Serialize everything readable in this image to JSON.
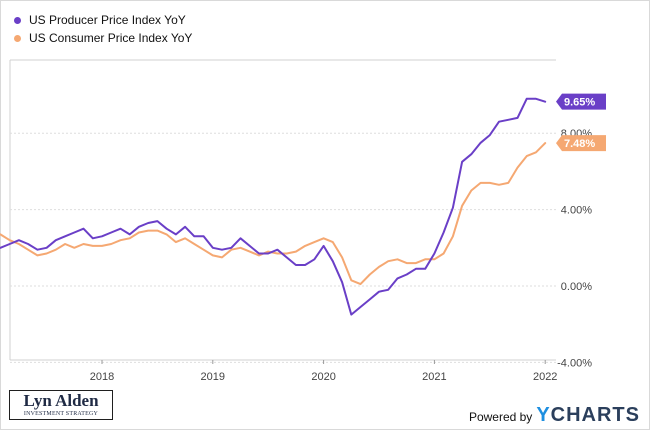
{
  "chart_data": {
    "type": "line",
    "title": "",
    "xlabel": "",
    "ylabel": "",
    "x_ticks": [
      "2018",
      "2019",
      "2020",
      "2021",
      "2022"
    ],
    "y_ticks": [
      "-4.00%",
      "0.00%",
      "4.00%",
      "8.00%"
    ],
    "ylim": [
      -4,
      11.5
    ],
    "grid": "horizontal",
    "legend_position": "top-left",
    "series": [
      {
        "name": "US Producer Price Index YoY",
        "color": "#6a3fc7",
        "last_label": "9.65%",
        "points": [
          [
            "2017-02",
            2.0
          ],
          [
            "2017-03",
            2.2
          ],
          [
            "2017-04",
            2.4
          ],
          [
            "2017-05",
            2.2
          ],
          [
            "2017-06",
            1.9
          ],
          [
            "2017-07",
            2.0
          ],
          [
            "2017-08",
            2.4
          ],
          [
            "2017-09",
            2.6
          ],
          [
            "2017-10",
            2.8
          ],
          [
            "2017-11",
            3.0
          ],
          [
            "2017-12",
            2.5
          ],
          [
            "2018-01",
            2.6
          ],
          [
            "2018-02",
            2.8
          ],
          [
            "2018-03",
            3.0
          ],
          [
            "2018-04",
            2.7
          ],
          [
            "2018-05",
            3.1
          ],
          [
            "2018-06",
            3.3
          ],
          [
            "2018-07",
            3.4
          ],
          [
            "2018-08",
            3.0
          ],
          [
            "2018-09",
            2.7
          ],
          [
            "2018-10",
            3.1
          ],
          [
            "2018-11",
            2.6
          ],
          [
            "2018-12",
            2.6
          ],
          [
            "2019-01",
            2.0
          ],
          [
            "2019-02",
            1.9
          ],
          [
            "2019-03",
            2.0
          ],
          [
            "2019-04",
            2.5
          ],
          [
            "2019-05",
            2.1
          ],
          [
            "2019-06",
            1.7
          ],
          [
            "2019-07",
            1.7
          ],
          [
            "2019-08",
            1.9
          ],
          [
            "2019-09",
            1.5
          ],
          [
            "2019-10",
            1.1
          ],
          [
            "2019-11",
            1.1
          ],
          [
            "2019-12",
            1.4
          ],
          [
            "2020-01",
            2.1
          ],
          [
            "2020-02",
            1.3
          ],
          [
            "2020-03",
            0.2
          ],
          [
            "2020-04",
            -1.5
          ],
          [
            "2020-05",
            -1.1
          ],
          [
            "2020-06",
            -0.7
          ],
          [
            "2020-07",
            -0.3
          ],
          [
            "2020-08",
            -0.2
          ],
          [
            "2020-09",
            0.4
          ],
          [
            "2020-10",
            0.6
          ],
          [
            "2020-11",
            0.9
          ],
          [
            "2020-12",
            0.9
          ],
          [
            "2021-01",
            1.7
          ],
          [
            "2021-02",
            2.8
          ],
          [
            "2021-03",
            4.1
          ],
          [
            "2021-04",
            6.5
          ],
          [
            "2021-05",
            6.9
          ],
          [
            "2021-06",
            7.5
          ],
          [
            "2021-07",
            7.9
          ],
          [
            "2021-08",
            8.6
          ],
          [
            "2021-09",
            8.7
          ],
          [
            "2021-10",
            8.8
          ],
          [
            "2021-11",
            9.8
          ],
          [
            "2021-12",
            9.8
          ],
          [
            "2022-01",
            9.65
          ]
        ]
      },
      {
        "name": "US Consumer Price Index YoY",
        "color": "#f5a872",
        "last_label": "7.48%",
        "points": [
          [
            "2017-02",
            2.7
          ],
          [
            "2017-03",
            2.4
          ],
          [
            "2017-04",
            2.2
          ],
          [
            "2017-05",
            1.9
          ],
          [
            "2017-06",
            1.6
          ],
          [
            "2017-07",
            1.7
          ],
          [
            "2017-08",
            1.9
          ],
          [
            "2017-09",
            2.2
          ],
          [
            "2017-10",
            2.0
          ],
          [
            "2017-11",
            2.2
          ],
          [
            "2017-12",
            2.1
          ],
          [
            "2018-01",
            2.1
          ],
          [
            "2018-02",
            2.2
          ],
          [
            "2018-03",
            2.4
          ],
          [
            "2018-04",
            2.5
          ],
          [
            "2018-05",
            2.8
          ],
          [
            "2018-06",
            2.9
          ],
          [
            "2018-07",
            2.9
          ],
          [
            "2018-08",
            2.7
          ],
          [
            "2018-09",
            2.3
          ],
          [
            "2018-10",
            2.5
          ],
          [
            "2018-11",
            2.2
          ],
          [
            "2018-12",
            1.9
          ],
          [
            "2019-01",
            1.6
          ],
          [
            "2019-02",
            1.5
          ],
          [
            "2019-03",
            1.9
          ],
          [
            "2019-04",
            2.0
          ],
          [
            "2019-05",
            1.8
          ],
          [
            "2019-06",
            1.6
          ],
          [
            "2019-07",
            1.8
          ],
          [
            "2019-08",
            1.7
          ],
          [
            "2019-09",
            1.7
          ],
          [
            "2019-10",
            1.8
          ],
          [
            "2019-11",
            2.1
          ],
          [
            "2019-12",
            2.3
          ],
          [
            "2020-01",
            2.5
          ],
          [
            "2020-02",
            2.3
          ],
          [
            "2020-03",
            1.5
          ],
          [
            "2020-04",
            0.3
          ],
          [
            "2020-05",
            0.1
          ],
          [
            "2020-06",
            0.6
          ],
          [
            "2020-07",
            1.0
          ],
          [
            "2020-08",
            1.3
          ],
          [
            "2020-09",
            1.4
          ],
          [
            "2020-10",
            1.2
          ],
          [
            "2020-11",
            1.2
          ],
          [
            "2020-12",
            1.4
          ],
          [
            "2021-01",
            1.4
          ],
          [
            "2021-02",
            1.7
          ],
          [
            "2021-03",
            2.6
          ],
          [
            "2021-04",
            4.2
          ],
          [
            "2021-05",
            5.0
          ],
          [
            "2021-06",
            5.4
          ],
          [
            "2021-07",
            5.4
          ],
          [
            "2021-08",
            5.3
          ],
          [
            "2021-09",
            5.4
          ],
          [
            "2021-10",
            6.2
          ],
          [
            "2021-11",
            6.8
          ],
          [
            "2021-12",
            7.0
          ],
          [
            "2022-01",
            7.48
          ]
        ]
      }
    ]
  },
  "branding": {
    "logo_name": "Lyn Alden",
    "logo_sub": "INVESTMENT STRATEGY",
    "powered_by": "Powered by",
    "brand_y": "Y",
    "brand_rest": "CHARTS"
  }
}
